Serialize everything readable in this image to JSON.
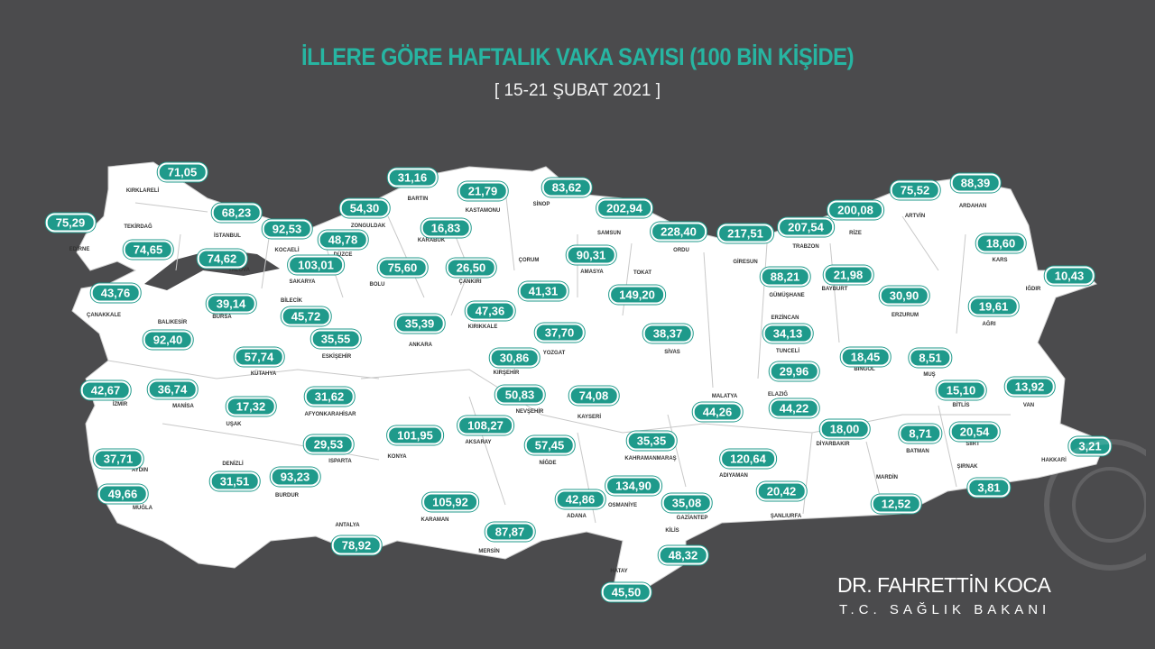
{
  "title": "İLLERE GÖRE HAFTALIK VAKA SAYISI (100 BİN KİŞİDE)",
  "subtitle": "[ 15-21 ŞUBAT 2021 ]",
  "signature": {
    "name": "DR. FAHRETTİN KOCA",
    "role": "T.C. SAĞLIK BAKANI"
  },
  "colors": {
    "background": "#4b4b4d",
    "accent": "#27b5a2",
    "pill": "#1f9a8b",
    "land": "#ffffff"
  },
  "provinces": [
    {
      "name": "KIRKLARELİ",
      "value": "71,05"
    },
    {
      "name": "EDİRNE",
      "value": "75,29"
    },
    {
      "name": "TEKİRDAĞ",
      "value": "74,65"
    },
    {
      "name": "İSTANBUL",
      "value": "68,23"
    },
    {
      "name": "KOCAELİ",
      "value": "92,53"
    },
    {
      "name": "YALOVA",
      "value": "74,62"
    },
    {
      "name": "DÜZCE",
      "value": "48,78"
    },
    {
      "name": "SAKARYA",
      "value": "103,01"
    },
    {
      "name": "ZONGULDAK",
      "value": "54,30"
    },
    {
      "name": "BARTIN",
      "value": "31,16"
    },
    {
      "name": "KARABÜK",
      "value": "16,83"
    },
    {
      "name": "KASTAMONU",
      "value": "21,79"
    },
    {
      "name": "SİNOP",
      "value": "83,62"
    },
    {
      "name": "SAMSUN",
      "value": "202,94"
    },
    {
      "name": "ORDU",
      "value": "228,40"
    },
    {
      "name": "GİRESUN",
      "value": "217,51"
    },
    {
      "name": "TRABZON",
      "value": "207,54"
    },
    {
      "name": "RİZE",
      "value": "200,08"
    },
    {
      "name": "ARTVİN",
      "value": "75,52"
    },
    {
      "name": "ARDAHAN",
      "value": "88,39"
    },
    {
      "name": "KARS",
      "value": "18,60"
    },
    {
      "name": "IĞDIR",
      "value": "10,43"
    },
    {
      "name": "AĞRI",
      "value": "19,61"
    },
    {
      "name": "ERZURUM",
      "value": "30,90"
    },
    {
      "name": "BAYBURT",
      "value": "21,98"
    },
    {
      "name": "GÜMÜŞHANE",
      "value": "88,21"
    },
    {
      "name": "ERZİNCAN",
      "value": "34,13"
    },
    {
      "name": "TUNCELİ",
      "value": "29,96"
    },
    {
      "name": "ELAZIĞ",
      "value": "44,22"
    },
    {
      "name": "BİNGÖL",
      "value": "18,45"
    },
    {
      "name": "MUŞ",
      "value": "8,51"
    },
    {
      "name": "BİTLİS",
      "value": "15,10"
    },
    {
      "name": "VAN",
      "value": "13,92"
    },
    {
      "name": "BOLU",
      "value": "75,60"
    },
    {
      "name": "ÇANKIRI",
      "value": "26,50"
    },
    {
      "name": "ÇORUM",
      "value": "41,31"
    },
    {
      "name": "AMASYA",
      "value": "90,31"
    },
    {
      "name": "TOKAT",
      "value": "149,20"
    },
    {
      "name": "KIRIKKALE",
      "value": "47,36"
    },
    {
      "name": "ANKARA",
      "value": "35,39"
    },
    {
      "name": "YOZGAT",
      "value": "37,70"
    },
    {
      "name": "KIRŞEHİR",
      "value": "30,86"
    },
    {
      "name": "SİVAS",
      "value": "38,37"
    },
    {
      "name": "ÇANAKKALE",
      "value": "43,76"
    },
    {
      "name": "BURSA",
      "value": "39,14"
    },
    {
      "name": "BİLECİK",
      "value": "45,72"
    },
    {
      "name": "ESKİŞEHİR",
      "value": "35,55"
    },
    {
      "name": "BALIKESİR",
      "value": "92,40"
    },
    {
      "name": "KÜTAHYA",
      "value": "57,74"
    },
    {
      "name": "İZMİR",
      "value": "42,67"
    },
    {
      "name": "MANİSA",
      "value": "36,74"
    },
    {
      "name": "UŞAK",
      "value": "17,32"
    },
    {
      "name": "AFYONKARAHİSAR",
      "value": "31,62"
    },
    {
      "name": "NEVŞEHİR",
      "value": "50,83"
    },
    {
      "name": "KAYSERİ",
      "value": "74,08"
    },
    {
      "name": "MALATYA",
      "value": "44,26"
    },
    {
      "name": "DİYARBAKIR",
      "value": "18,00"
    },
    {
      "name": "BATMAN",
      "value": "8,71"
    },
    {
      "name": "SİİRT",
      "value": "20,54"
    },
    {
      "name": "ŞIRNAK",
      "value": "3,81"
    },
    {
      "name": "HAKKARİ",
      "value": "3,21"
    },
    {
      "name": "MARDİN",
      "value": "12,52"
    },
    {
      "name": "ŞANLIURFA",
      "value": "20,42"
    },
    {
      "name": "ADIYAMAN",
      "value": "120,64"
    },
    {
      "name": "KAHRAMANMARAŞ",
      "value": "35,35"
    },
    {
      "name": "GAZİANTEP",
      "value": "35,08"
    },
    {
      "name": "KİLİS",
      "value": "48,32"
    },
    {
      "name": "HATAY",
      "value": "45,50"
    },
    {
      "name": "OSMANİYE",
      "value": "134,90"
    },
    {
      "name": "ADANA",
      "value": "42,86"
    },
    {
      "name": "MERSİN",
      "value": "87,87"
    },
    {
      "name": "KARAMAN",
      "value": "105,92"
    },
    {
      "name": "NİĞDE",
      "value": "57,45"
    },
    {
      "name": "AKSARAY",
      "value": "108,27"
    },
    {
      "name": "KONYA",
      "value": "101,95"
    },
    {
      "name": "ISPARTA",
      "value": "29,53"
    },
    {
      "name": "BURDUR",
      "value": "93,23"
    },
    {
      "name": "DENİZLİ",
      "value": "31,51"
    },
    {
      "name": "ANTALYA",
      "value": "78,92"
    },
    {
      "name": "AYDIN",
      "value": "37,71"
    },
    {
      "name": "MUĞLA",
      "value": "49,66"
    }
  ]
}
